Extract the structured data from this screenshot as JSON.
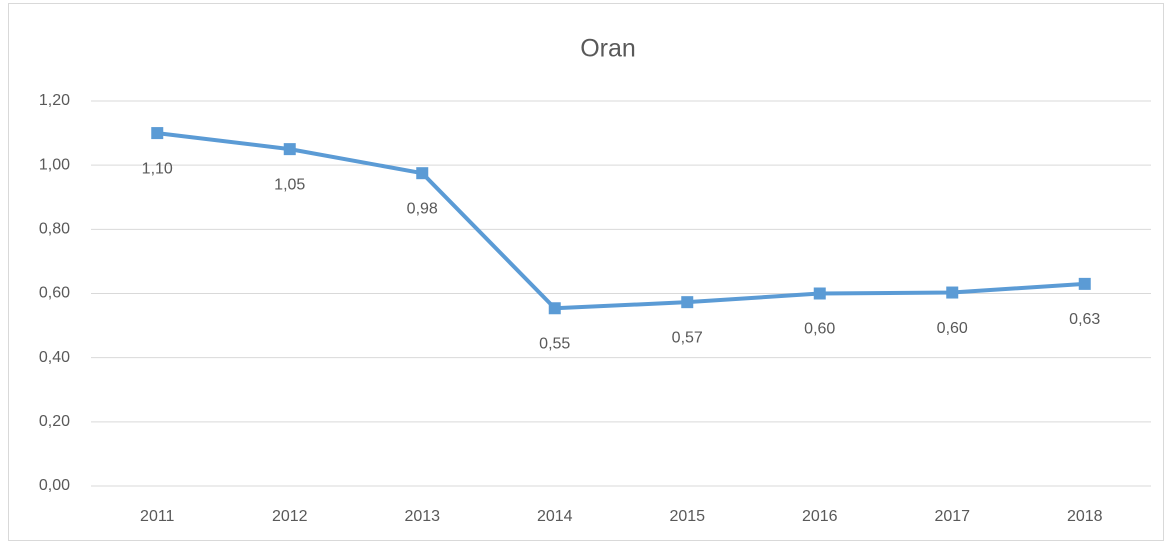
{
  "chart_data": {
    "type": "line",
    "title": "Oran",
    "categories": [
      "2011",
      "2012",
      "2013",
      "2014",
      "2015",
      "2016",
      "2017",
      "2018"
    ],
    "values": [
      1.1,
      1.05,
      0.975,
      0.554,
      0.573,
      0.6,
      0.603,
      0.63
    ],
    "value_labels": [
      "1,10",
      "1,05",
      "0,98",
      "0,55",
      "0,57",
      "0,60",
      "0,60",
      "0,63"
    ],
    "color": "#5b9bd5",
    "ylim": [
      0,
      1.2
    ],
    "yticks": [
      {
        "value": 0,
        "label": "0,00"
      },
      {
        "value": 0.2,
        "label": "0,20"
      },
      {
        "value": 0.4,
        "label": "0,40"
      },
      {
        "value": 0.6,
        "label": "0,60"
      },
      {
        "value": 0.8,
        "label": "0,80"
      },
      {
        "value": 1.0,
        "label": "1,00"
      },
      {
        "value": 1.2,
        "label": "1,20"
      }
    ],
    "grid": true
  }
}
